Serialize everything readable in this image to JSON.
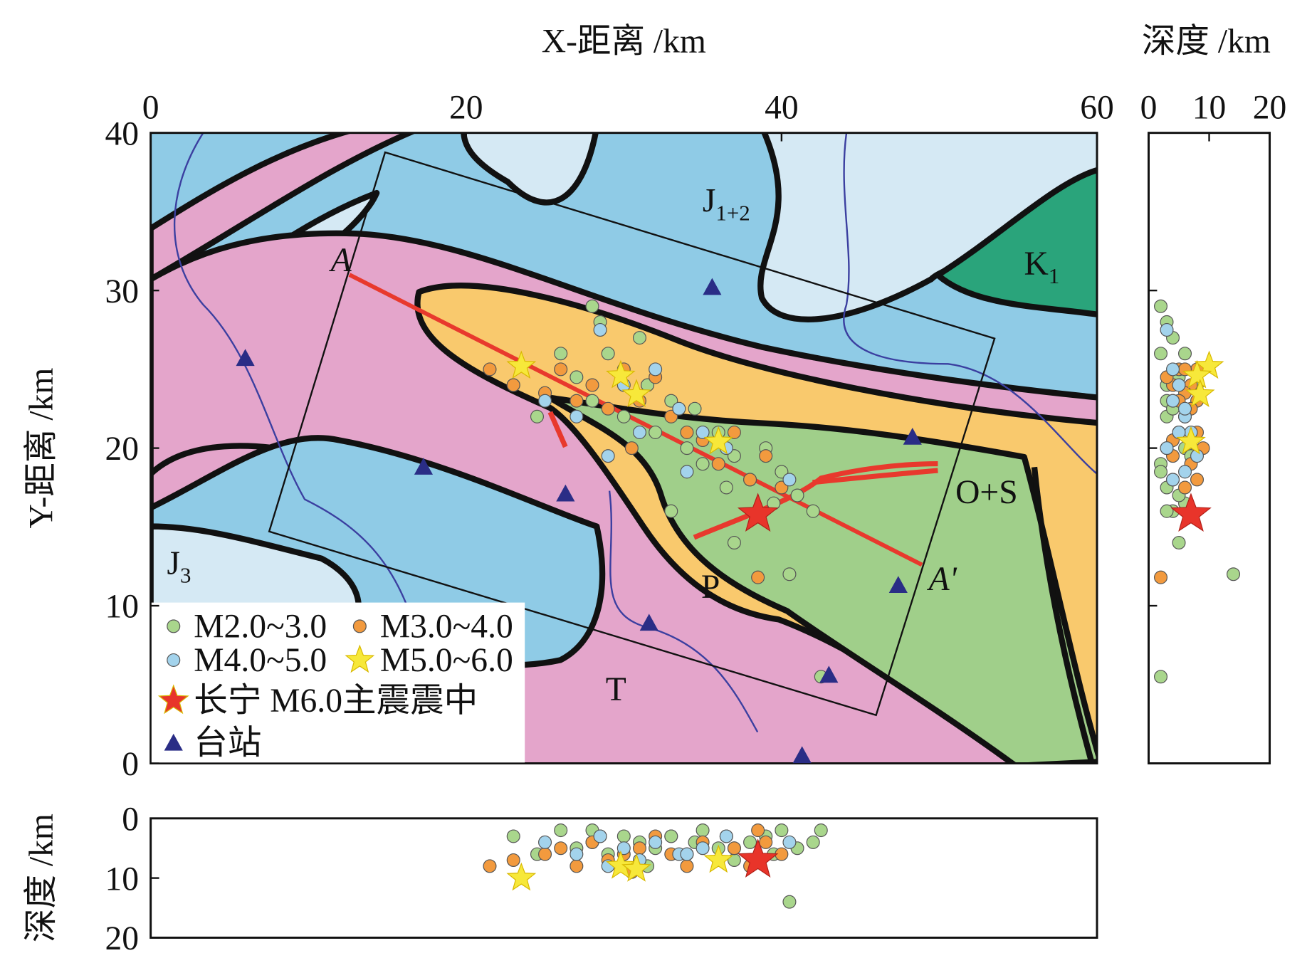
{
  "chart_data": [
    {
      "type": "scatter",
      "xlabel": "X-距离 /km",
      "ylabel": "Y-距离 /km",
      "xlim": [
        0,
        60
      ],
      "ylim": [
        0,
        40
      ],
      "xticks": [
        0,
        20,
        40,
        60
      ],
      "yticks": [
        0,
        10,
        20,
        30,
        40
      ],
      "legend": "lower left",
      "series": [
        {
          "name": "M2.0~3.0",
          "color": "#a9d68c",
          "marker": "circle",
          "x": [
            23,
            24.5,
            26,
            27,
            28,
            28.5,
            29,
            30,
            31,
            31.5,
            32,
            33,
            34,
            34.5,
            35,
            36,
            36.5,
            37,
            38,
            39,
            39.5,
            40,
            41,
            42,
            33,
            37,
            40.5,
            28,
            42.5
          ],
          "y": [
            24,
            22,
            26,
            24.5,
            23,
            28,
            26,
            22,
            27,
            24,
            21,
            23,
            20,
            22.5,
            19,
            21,
            17.5,
            19.5,
            18,
            20,
            16.5,
            18.5,
            17,
            16,
            16,
            14,
            12,
            29,
            5.5
          ]
        },
        {
          "name": "M3.0~4.0",
          "color": "#f29a3e",
          "marker": "circle",
          "x": [
            21.5,
            23,
            25,
            26,
            27,
            28,
            29,
            30,
            30.5,
            31,
            32,
            33,
            34,
            35,
            36,
            37,
            38,
            39,
            40,
            38.5
          ],
          "y": [
            25,
            24,
            23.5,
            25,
            23,
            24,
            22.5,
            25,
            20,
            23,
            24.5,
            22,
            21,
            20.5,
            19,
            21,
            18,
            19.5,
            17.5,
            11.8
          ]
        },
        {
          "name": "M4.0~5.0",
          "color": "#a3d3ec",
          "marker": "circle",
          "x": [
            25,
            27,
            28.5,
            30,
            31,
            32,
            33.5,
            35,
            36.5,
            40.5,
            29,
            34
          ],
          "y": [
            23,
            22,
            27.5,
            24,
            21,
            25,
            22.5,
            21,
            20,
            18,
            19.5,
            18.5
          ]
        },
        {
          "name": "M5.0~6.0",
          "color": "#f7e83a",
          "marker": "star",
          "x": [
            23.5,
            29.8,
            30.8,
            36
          ],
          "y": [
            25.2,
            24.6,
            23.4,
            20.4
          ]
        },
        {
          "name": "长宁 M6.0主震震中",
          "color": "#e8342a",
          "marker": "star",
          "x": [
            38.5
          ],
          "y": [
            15.8
          ]
        },
        {
          "name": "台站",
          "color": "#2a2d86",
          "marker": "triangle",
          "x": [
            6,
            17.3,
            26.3,
            35.6,
            31.6,
            48.3,
            47.4,
            43,
            41.3
          ],
          "y": [
            25.7,
            18.8,
            17.1,
            30.2,
            8.9,
            20.7,
            11.3,
            5.6,
            0.5
          ]
        }
      ],
      "annotations": [
        {
          "text": "J",
          "sub": "1+2",
          "x": 36.5,
          "y": 35
        },
        {
          "text": "K",
          "sub": "1",
          "x": 56.5,
          "y": 31
        },
        {
          "text": "J",
          "sub": "3",
          "x": 1.8,
          "y": 12
        },
        {
          "text": "O+S",
          "x": 53,
          "y": 16.5
        },
        {
          "text": "P",
          "x": 35.5,
          "y": 10.5
        },
        {
          "text": "T",
          "x": 29.5,
          "y": 4
        }
      ],
      "profile": {
        "start_label": "A",
        "end_label": "A'",
        "x": [
          12.6,
          48.9
        ],
        "y": [
          31,
          12.6
        ]
      }
    },
    {
      "type": "scatter",
      "title": "深度 /km",
      "xlim": [
        0,
        20
      ],
      "ylim": [
        0,
        40
      ],
      "xticks": [
        0,
        10,
        20
      ],
      "series": [
        {
          "color": "#a9d68c",
          "marker": "circle",
          "x": [
            3,
            6,
            2,
            5,
            4,
            3,
            6,
            3,
            4,
            8,
            5,
            3,
            6,
            4,
            2,
            5,
            3,
            7,
            4,
            3,
            6,
            2,
            5,
            4,
            3,
            5,
            14,
            2,
            2
          ],
          "y": [
            24,
            22,
            26,
            24.5,
            23,
            28,
            26,
            22,
            27,
            24,
            21,
            23,
            20,
            22.5,
            19,
            21,
            17.5,
            19.5,
            18,
            20,
            16.5,
            18.5,
            17,
            16,
            16,
            14,
            12,
            29,
            5.5
          ]
        },
        {
          "color": "#f29a3e",
          "marker": "circle",
          "x": [
            8,
            7,
            6,
            5,
            8,
            4,
            7,
            6,
            9,
            5,
            3,
            6,
            8,
            4,
            7,
            5,
            8,
            4,
            6,
            2
          ],
          "y": [
            25,
            24,
            23.5,
            25,
            23,
            24,
            22.5,
            25,
            20,
            23,
            24.5,
            22,
            21,
            20.5,
            19,
            21,
            18,
            19.5,
            17.5,
            11.8
          ]
        },
        {
          "color": "#a3d3ec",
          "marker": "circle",
          "x": [
            4,
            6,
            3,
            5,
            7,
            4,
            6,
            5,
            3,
            4,
            8,
            6
          ],
          "y": [
            23,
            22,
            27.5,
            24,
            21,
            25,
            22.5,
            21,
            20,
            18,
            19.5,
            18.5
          ]
        },
        {
          "color": "#f7e83a",
          "marker": "star",
          "x": [
            10,
            8,
            8.5,
            7
          ],
          "y": [
            25.2,
            24.6,
            23.4,
            20.4
          ]
        },
        {
          "color": "#e8342a",
          "marker": "star",
          "x": [
            7
          ],
          "y": [
            15.8
          ]
        }
      ]
    },
    {
      "type": "scatter",
      "ylabel": "深度 /km",
      "xlim": [
        0,
        60
      ],
      "ylim": [
        20,
        0
      ],
      "yticks": [
        0,
        10,
        20
      ],
      "series": [
        {
          "color": "#a9d68c",
          "marker": "circle",
          "x": [
            23,
            24.5,
            26,
            27,
            28,
            28.5,
            29,
            30,
            31,
            31.5,
            32,
            33,
            34,
            34.5,
            35,
            36,
            36.5,
            37,
            38,
            39,
            39.5,
            40,
            41,
            42,
            33,
            37,
            40.5,
            28,
            42.5
          ],
          "y": [
            3,
            6,
            2,
            5,
            4,
            3,
            6,
            3,
            4,
            8,
            5,
            3,
            6,
            4,
            2,
            5,
            3,
            7,
            4,
            3,
            6,
            2,
            5,
            4,
            3,
            5,
            14,
            2,
            2
          ]
        },
        {
          "color": "#f29a3e",
          "marker": "circle",
          "x": [
            21.5,
            23,
            25,
            26,
            27,
            28,
            29,
            30,
            30.5,
            31,
            32,
            33,
            34,
            35,
            36,
            37,
            38,
            39,
            40,
            38.5
          ],
          "y": [
            8,
            7,
            6,
            5,
            8,
            4,
            7,
            6,
            9,
            5,
            3,
            6,
            8,
            4,
            7,
            5,
            8,
            4,
            6,
            2
          ]
        },
        {
          "color": "#a3d3ec",
          "marker": "circle",
          "x": [
            25,
            27,
            28.5,
            30,
            31,
            32,
            33.5,
            35,
            36.5,
            40.5,
            29,
            34
          ],
          "y": [
            4,
            6,
            3,
            5,
            7,
            4,
            6,
            5,
            3,
            4,
            8,
            6
          ]
        },
        {
          "color": "#f7e83a",
          "marker": "star",
          "x": [
            23.5,
            29.8,
            30.8,
            36
          ],
          "y": [
            10,
            8,
            8.5,
            7
          ]
        },
        {
          "color": "#e8342a",
          "marker": "star",
          "x": [
            38.5
          ],
          "y": [
            7
          ]
        }
      ]
    }
  ]
}
